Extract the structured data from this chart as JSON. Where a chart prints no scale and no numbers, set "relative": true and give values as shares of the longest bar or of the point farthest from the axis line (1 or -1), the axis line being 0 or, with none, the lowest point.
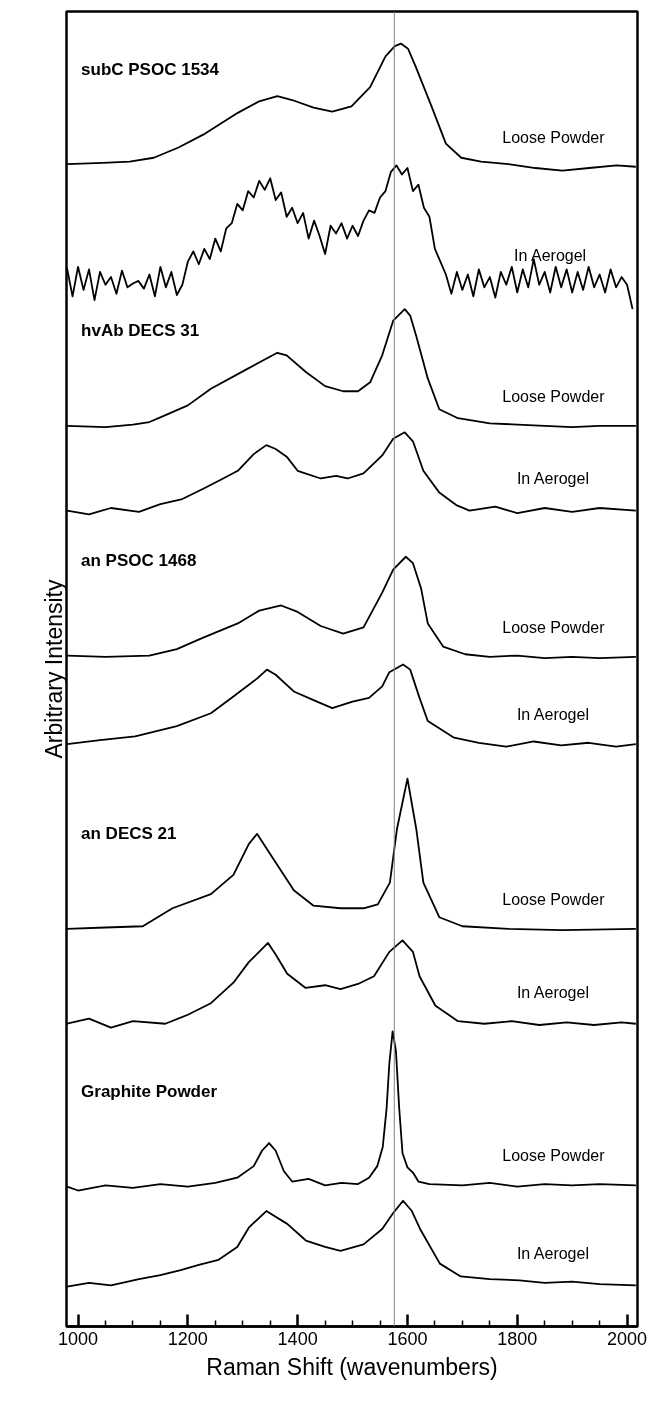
{
  "chart_data": {
    "type": "line",
    "relative": true,
    "xlabel": "Raman Shift (wavenumbers)",
    "ylabel": "Arbitrary Intensity",
    "xlim": [
      979,
      2019
    ],
    "xticks": [
      1000,
      {
        "value": 1050,
        "label": null
      },
      {
        "value": 1100,
        "label": null
      },
      {
        "value": 1150,
        "label": null
      },
      1200,
      {
        "value": 1250,
        "label": null
      },
      {
        "value": 1300,
        "label": null
      },
      {
        "value": 1350,
        "label": null
      },
      1400,
      {
        "value": 1450,
        "label": null
      },
      {
        "value": 1500,
        "label": null
      },
      {
        "value": 1550,
        "label": null
      },
      1600,
      {
        "value": 1650,
        "label": null
      },
      {
        "value": 1700,
        "label": null
      },
      {
        "value": 1750,
        "label": null
      },
      1800,
      {
        "value": 1850,
        "label": null
      },
      {
        "value": 1900,
        "label": null
      },
      {
        "value": 1950,
        "label": null
      },
      2000
    ],
    "line_style": "solid",
    "ref_lines": [
      {
        "axis": "x",
        "value": 1576,
        "color": "#808080"
      }
    ],
    "annotations": [
      "subC PSOC 1534",
      "hvAb DECS 31",
      "an PSOC 1468",
      "an DECS 21",
      "Graphite Powder"
    ],
    "series": [
      {
        "name": "Loose Powder",
        "color": "#000000",
        "x": [
          980,
          1045,
          1094,
          1138,
          1183,
          1228,
          1291,
          1330,
          1363,
          1390,
          1429,
          1463,
          1498,
          1532,
          1560,
          1577,
          1588,
          1601,
          1615,
          1643,
          1670,
          1698,
          1734,
          1784,
          1833,
          1882,
          1931,
          1981,
          2016
        ],
        "values": [
          0.906,
          0.907,
          0.908,
          0.911,
          0.919,
          0.929,
          0.946,
          0.955,
          0.959,
          0.956,
          0.95,
          0.947,
          0.951,
          0.966,
          0.99,
          0.998,
          1.0,
          0.996,
          0.982,
          0.952,
          0.922,
          0.911,
          0.908,
          0.906,
          0.903,
          0.901,
          0.903,
          0.905,
          0.904
        ]
      },
      {
        "name": "In Aerogel",
        "color": "#000000",
        "x": [
          980,
          990,
          1000,
          1010,
          1020,
          1030,
          1040,
          1050,
          1060,
          1070,
          1080,
          1090,
          1100,
          1110,
          1120,
          1130,
          1140,
          1150,
          1160,
          1170,
          1180,
          1190,
          1200,
          1210,
          1220,
          1230,
          1240,
          1250,
          1260,
          1270,
          1280,
          1290,
          1300,
          1310,
          1320,
          1330,
          1340,
          1350,
          1360,
          1370,
          1380,
          1390,
          1400,
          1410,
          1420,
          1430,
          1440,
          1450,
          1460,
          1470,
          1480,
          1490,
          1500,
          1510,
          1520,
          1530,
          1540,
          1550,
          1560,
          1570,
          1580,
          1590,
          1600,
          1610,
          1620,
          1630,
          1640,
          1650,
          1660,
          1670,
          1680,
          1690,
          1700,
          1710,
          1720,
          1730,
          1740,
          1750,
          1760,
          1770,
          1780,
          1790,
          1800,
          1810,
          1820,
          1830,
          1840,
          1850,
          1860,
          1870,
          1880,
          1890,
          1900,
          1910,
          1920,
          1930,
          1940,
          1950,
          1960,
          1970,
          1980,
          1990,
          2000,
          2010
        ],
        "values": [
          0.825,
          0.803,
          0.826,
          0.808,
          0.824,
          0.8,
          0.822,
          0.812,
          0.818,
          0.805,
          0.823,
          0.81,
          0.813,
          0.815,
          0.809,
          0.82,
          0.803,
          0.826,
          0.81,
          0.822,
          0.804,
          0.812,
          0.83,
          0.838,
          0.828,
          0.84,
          0.832,
          0.848,
          0.838,
          0.856,
          0.86,
          0.875,
          0.87,
          0.885,
          0.88,
          0.893,
          0.886,
          0.895,
          0.878,
          0.884,
          0.865,
          0.872,
          0.86,
          0.868,
          0.848,
          0.862,
          0.85,
          0.836,
          0.858,
          0.852,
          0.86,
          0.848,
          0.858,
          0.85,
          0.862,
          0.87,
          0.868,
          0.88,
          0.885,
          0.9,
          0.905,
          0.898,
          0.903,
          0.885,
          0.89,
          0.872,
          0.865,
          0.84,
          0.83,
          0.82,
          0.805,
          0.822,
          0.808,
          0.82,
          0.803,
          0.824,
          0.81,
          0.818,
          0.802,
          0.822,
          0.812,
          0.826,
          0.806,
          0.824,
          0.81,
          0.832,
          0.812,
          0.822,
          0.806,
          0.826,
          0.81,
          0.824,
          0.806,
          0.822,
          0.808,
          0.826,
          0.81,
          0.82,
          0.806,
          0.824,
          0.81,
          0.818,
          0.812,
          0.793
        ]
      },
      {
        "name": "Loose Powder",
        "color": "#000000",
        "x": [
          980,
          1050,
          1100,
          1130,
          1152,
          1200,
          1242,
          1311,
          1363,
          1380,
          1415,
          1450,
          1483,
          1510,
          1532,
          1554,
          1574,
          1595,
          1605,
          1616,
          1637,
          1658,
          1692,
          1750,
          1800,
          1850,
          1900,
          1950,
          2016
        ],
        "values": [
          0.702,
          0.701,
          0.703,
          0.705,
          0.709,
          0.718,
          0.731,
          0.747,
          0.759,
          0.757,
          0.744,
          0.733,
          0.729,
          0.729,
          0.736,
          0.757,
          0.784,
          0.793,
          0.788,
          0.772,
          0.739,
          0.715,
          0.708,
          0.704,
          0.703,
          0.702,
          0.701,
          0.702,
          0.702
        ]
      },
      {
        "name": "In Aerogel",
        "color": "#000000",
        "x": [
          980,
          1020,
          1060,
          1111,
          1150,
          1190,
          1228,
          1260,
          1291,
          1320,
          1343,
          1360,
          1380,
          1400,
          1442,
          1470,
          1491,
          1520,
          1554,
          1574,
          1595,
          1610,
          1629,
          1658,
          1690,
          1713,
          1760,
          1800,
          1850,
          1900,
          1950,
          2016
        ],
        "values": [
          0.636,
          0.633,
          0.638,
          0.635,
          0.641,
          0.645,
          0.653,
          0.66,
          0.667,
          0.68,
          0.687,
          0.684,
          0.678,
          0.667,
          0.661,
          0.663,
          0.661,
          0.665,
          0.679,
          0.692,
          0.697,
          0.69,
          0.667,
          0.65,
          0.64,
          0.636,
          0.639,
          0.634,
          0.638,
          0.635,
          0.638,
          0.636
        ]
      },
      {
        "name": "Loose Powder",
        "color": "#000000",
        "x": [
          980,
          1050,
          1130,
          1180,
          1228,
          1291,
          1330,
          1370,
          1400,
          1442,
          1483,
          1520,
          1554,
          1574,
          1597,
          1610,
          1625,
          1637,
          1665,
          1705,
          1750,
          1800,
          1850,
          1900,
          1950,
          2016
        ],
        "values": [
          0.523,
          0.522,
          0.523,
          0.528,
          0.537,
          0.548,
          0.558,
          0.562,
          0.557,
          0.546,
          0.54,
          0.545,
          0.572,
          0.59,
          0.6,
          0.595,
          0.575,
          0.548,
          0.53,
          0.524,
          0.522,
          0.523,
          0.521,
          0.522,
          0.521,
          0.522
        ]
      },
      {
        "name": "In Aerogel",
        "color": "#000000",
        "x": [
          980,
          1040,
          1104,
          1180,
          1242,
          1283,
          1326,
          1344,
          1360,
          1393,
          1430,
          1463,
          1500,
          1530,
          1554,
          1567,
          1592,
          1605,
          1622,
          1637,
          1685,
          1730,
          1780,
          1830,
          1880,
          1930,
          1980,
          2016
        ],
        "values": [
          0.454,
          0.457,
          0.46,
          0.468,
          0.478,
          0.491,
          0.505,
          0.512,
          0.508,
          0.495,
          0.488,
          0.482,
          0.487,
          0.49,
          0.499,
          0.51,
          0.516,
          0.512,
          0.49,
          0.472,
          0.459,
          0.455,
          0.452,
          0.456,
          0.453,
          0.455,
          0.452,
          0.454
        ]
      },
      {
        "name": "Loose Powder",
        "color": "#000000",
        "x": [
          980,
          1050,
          1118,
          1172,
          1242,
          1283,
          1311,
          1326,
          1352,
          1393,
          1429,
          1478,
          1520,
          1546,
          1568,
          1581,
          1600,
          1616,
          1629,
          1658,
          1700,
          1784,
          1882,
          2016
        ],
        "values": [
          0.31,
          0.311,
          0.312,
          0.326,
          0.337,
          0.352,
          0.376,
          0.384,
          0.367,
          0.34,
          0.328,
          0.326,
          0.326,
          0.329,
          0.346,
          0.388,
          0.427,
          0.388,
          0.346,
          0.319,
          0.312,
          0.31,
          0.309,
          0.31
        ]
      },
      {
        "name": "In Aerogel",
        "color": "#000000",
        "x": [
          980,
          1020,
          1060,
          1100,
          1159,
          1200,
          1242,
          1283,
          1311,
          1346,
          1360,
          1381,
          1414,
          1450,
          1478,
          1510,
          1539,
          1567,
          1591,
          1610,
          1622,
          1651,
          1692,
          1740,
          1790,
          1840,
          1890,
          1940,
          1990,
          2016
        ],
        "values": [
          0.236,
          0.24,
          0.233,
          0.238,
          0.236,
          0.243,
          0.252,
          0.268,
          0.284,
          0.299,
          0.29,
          0.275,
          0.264,
          0.266,
          0.263,
          0.267,
          0.273,
          0.292,
          0.301,
          0.292,
          0.273,
          0.25,
          0.238,
          0.236,
          0.238,
          0.235,
          0.237,
          0.235,
          0.237,
          0.236
        ]
      },
      {
        "name": "Loose Powder",
        "color": "#000000",
        "x": [
          980,
          1000,
          1050,
          1100,
          1150,
          1200,
          1250,
          1290,
          1320,
          1335,
          1348,
          1360,
          1375,
          1390,
          1420,
          1450,
          1480,
          1510,
          1530,
          1545,
          1555,
          1562,
          1567,
          1573,
          1579,
          1585,
          1591,
          1600,
          1610,
          1620,
          1640,
          1700,
          1750,
          1800,
          1850,
          1900,
          1950,
          2016
        ],
        "values": [
          0.109,
          0.106,
          0.11,
          0.108,
          0.111,
          0.109,
          0.112,
          0.116,
          0.125,
          0.137,
          0.143,
          0.137,
          0.121,
          0.113,
          0.115,
          0.11,
          0.112,
          0.111,
          0.116,
          0.125,
          0.14,
          0.17,
          0.205,
          0.23,
          0.215,
          0.17,
          0.135,
          0.124,
          0.12,
          0.113,
          0.111,
          0.11,
          0.112,
          0.109,
          0.111,
          0.11,
          0.111,
          0.11
        ]
      },
      {
        "name": "In Aerogel",
        "color": "#000000",
        "x": [
          980,
          1020,
          1060,
          1111,
          1150,
          1187,
          1220,
          1256,
          1290,
          1311,
          1343,
          1381,
          1415,
          1450,
          1478,
          1520,
          1554,
          1575,
          1592,
          1608,
          1623,
          1659,
          1697,
          1750,
          1804,
          1850,
          1900,
          1950,
          2016
        ],
        "values": [
          0.031,
          0.034,
          0.032,
          0.037,
          0.04,
          0.044,
          0.048,
          0.052,
          0.062,
          0.077,
          0.09,
          0.08,
          0.067,
          0.062,
          0.059,
          0.064,
          0.076,
          0.089,
          0.098,
          0.09,
          0.076,
          0.049,
          0.039,
          0.037,
          0.036,
          0.034,
          0.035,
          0.033,
          0.032
        ]
      }
    ]
  }
}
